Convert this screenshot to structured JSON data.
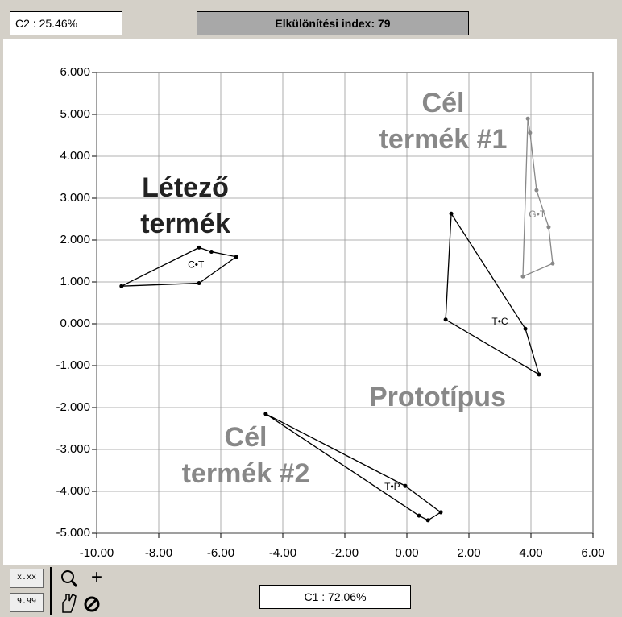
{
  "c2_label": "C2 : 25.46%",
  "index_label": "Elkülönítési index: 79",
  "c1_label": "C1 : 72.06%",
  "toolbar": [
    "x.xx",
    "9.99",
    "+"
  ],
  "chart_data": {
    "type": "polygon",
    "xlim": [
      -10,
      6
    ],
    "xticks": [
      {
        "value": -10,
        "label": "-10.00"
      },
      {
        "value": -8,
        "label": "-8.00"
      },
      {
        "value": -6,
        "label": "-6.00"
      },
      {
        "value": -4,
        "label": "-4.00"
      },
      {
        "value": -2,
        "label": "-2.00"
      },
      {
        "value": 0,
        "label": "0.00"
      },
      {
        "value": 2,
        "label": "2.00"
      },
      {
        "value": 4,
        "label": "4.00"
      },
      {
        "value": 6,
        "label": "6.00"
      }
    ],
    "ylim": [
      -5,
      6
    ],
    "yticks": [
      {
        "value": 6,
        "label": "6.000"
      },
      {
        "value": 5,
        "label": "5.000"
      },
      {
        "value": 4,
        "label": "4.000"
      },
      {
        "value": 3,
        "label": "3.000"
      },
      {
        "value": 2,
        "label": "2.000"
      },
      {
        "value": 1,
        "label": "1.000"
      },
      {
        "value": 0,
        "label": "0.000"
      },
      {
        "value": -1,
        "label": "-1.000"
      },
      {
        "value": -2,
        "label": "-2.000"
      },
      {
        "value": -3,
        "label": "-3.000"
      },
      {
        "value": -4,
        "label": "-4.000"
      },
      {
        "value": -5,
        "label": "-5.000"
      }
    ],
    "grid": true,
    "series": [
      {
        "color": "#000000",
        "x": [
          -9.2,
          -6.7,
          -6.3,
          -5.5,
          -6.7
        ],
        "values": [
          0.9,
          1.82,
          1.72,
          1.6,
          0.97
        ],
        "centroid": {
          "x": -6.8,
          "y": 1.4,
          "label": "C•T"
        }
      },
      {
        "color": "#000000",
        "x": [
          1.43,
          3.82,
          4.26,
          1.25
        ],
        "values": [
          2.63,
          -0.12,
          -1.21,
          0.1
        ],
        "centroid": {
          "x": 3.0,
          "y": 0.04,
          "label": "T•C"
        }
      },
      {
        "color": "#888888",
        "x": [
          3.9,
          3.97,
          4.18,
          4.57,
          4.7,
          3.74
        ],
        "values": [
          4.9,
          4.56,
          3.19,
          2.31,
          1.44,
          1.13
        ],
        "centroid": {
          "x": 4.2,
          "y": 2.6,
          "label": "G•T"
        }
      },
      {
        "color": "#000000",
        "x": [
          -4.55,
          -0.05,
          1.09,
          0.68,
          0.39
        ],
        "values": [
          -2.15,
          -3.87,
          -4.5,
          -4.69,
          -4.58
        ],
        "centroid": {
          "x": -0.47,
          "y": -3.9,
          "label": "T•P"
        }
      }
    ],
    "annotations": [
      {
        "lines": [
          "Létező",
          "termék"
        ],
        "color": "#222222"
      },
      {
        "lines": [
          "Cél",
          "termék #1"
        ],
        "color": "#888888"
      },
      {
        "lines": [
          "Prototípus"
        ],
        "color": "#888888"
      },
      {
        "lines": [
          "Cél",
          "termék #2"
        ],
        "color": "#888888"
      }
    ]
  }
}
